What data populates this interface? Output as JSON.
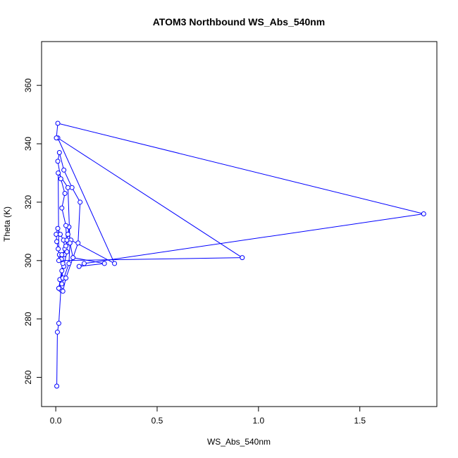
{
  "chart_data": {
    "type": "line",
    "title": "ATOM3 Northbound WS_Abs_540nm",
    "xlabel": "WS_Abs_540nm",
    "ylabel": "Theta (K)",
    "xlim": [
      -0.07,
      1.88
    ],
    "ylim": [
      250,
      375
    ],
    "xticks": [
      0,
      0.5,
      1,
      1.5
    ],
    "xtick_labels": [
      "0.0",
      "0.5",
      "1.0",
      "1.5"
    ],
    "yticks": [
      260,
      280,
      300,
      320,
      340,
      360
    ],
    "ytick_labels": [
      "260",
      "280",
      "300",
      "320",
      "340",
      "360"
    ],
    "grid": false,
    "markers": "open-circle",
    "colors": {
      "series": "#0000ff",
      "frame": "#000000"
    },
    "series": [
      {
        "x": [
          0.005,
          0.008,
          0.015,
          0.025,
          0.02,
          0.035,
          0.03,
          0.04,
          0.028,
          0.018,
          0.012,
          0.005,
          0.002,
          0.01,
          0.022,
          0.038,
          0.045,
          0.042,
          0.05,
          0.055,
          0.06,
          0.065,
          0.07,
          0.065,
          0.03,
          0.015,
          0.035,
          0.05,
          0.11,
          0.12,
          0.08,
          0.04,
          0.018,
          0.01,
          0.025,
          0.045,
          0.03,
          0.05,
          0.055,
          0.015,
          0.035,
          0.03,
          0.075,
          0.29,
          0.01,
          0.92,
          0.015,
          0.012,
          0.06,
          0.07,
          0.085,
          0.24,
          0.115,
          0.14,
          1.815,
          0.01,
          0.003
        ],
        "y": [
          257,
          275.5,
          278.5,
          290,
          293.5,
          294,
          296.5,
          298,
          300.5,
          302,
          304,
          306.5,
          309,
          311,
          309,
          307,
          304,
          302,
          305,
          307,
          309,
          311.5,
          306,
          299,
          292,
          290.5,
          289.5,
          294,
          306,
          320,
          325,
          331,
          337,
          334,
          328,
          323,
          318,
          312,
          303,
          290.5,
          299,
          302,
          307,
          299,
          342,
          301,
          300,
          330,
          325,
          306,
          301,
          299,
          298,
          299,
          316,
          347,
          342
        ]
      }
    ]
  }
}
